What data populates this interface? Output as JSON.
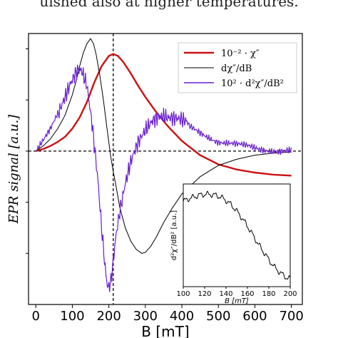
{
  "caption_fragment": "uished also at higher temperatures.",
  "chart_data": [
    {
      "type": "line",
      "title": "",
      "xlabel": "B [mT]",
      "ylabel": "EPR signal [a.u.]",
      "xlim": [
        -20,
        730
      ],
      "ylim": [
        -1.5,
        1.15
      ],
      "xticks": [
        "0",
        "100",
        "200",
        "300",
        "400",
        "500",
        "600",
        "700"
      ],
      "xtick_values": [
        0,
        100,
        200,
        300,
        400,
        500,
        600,
        700
      ],
      "yticks_labeled": false,
      "reference_lines": {
        "vertical_x": 212,
        "horizontal_y": 0,
        "style": "dashed"
      },
      "legend_position": "top-right",
      "series": [
        {
          "name": "10⁻² · χ″",
          "color": "#cc1111",
          "x": [
            0,
            20,
            40,
            60,
            80,
            100,
            120,
            140,
            160,
            180,
            200,
            212,
            225,
            240,
            260,
            280,
            300,
            330,
            360,
            400,
            450,
            500,
            550,
            600,
            650,
            700
          ],
          "y": [
            0.0,
            0.02,
            0.05,
            0.09,
            0.14,
            0.22,
            0.33,
            0.48,
            0.67,
            0.83,
            0.93,
            0.95,
            0.93,
            0.87,
            0.76,
            0.64,
            0.53,
            0.38,
            0.25,
            0.1,
            -0.04,
            -0.13,
            -0.18,
            -0.21,
            -0.23,
            -0.24
          ]
        },
        {
          "name": "dχ″/dB",
          "color": "#000000",
          "x": [
            0,
            20,
            40,
            60,
            80,
            100,
            110,
            120,
            130,
            140,
            150,
            158,
            165,
            175,
            185,
            195,
            205,
            212,
            220,
            230,
            245,
            260,
            275,
            290,
            300,
            315,
            330,
            350,
            375,
            400,
            450,
            500,
            550,
            600,
            650,
            700
          ],
          "y": [
            0.0,
            0.05,
            0.12,
            0.22,
            0.35,
            0.55,
            0.68,
            0.83,
            0.96,
            1.05,
            1.1,
            1.05,
            0.95,
            0.75,
            0.5,
            0.22,
            -0.05,
            -0.2,
            -0.35,
            -0.55,
            -0.75,
            -0.88,
            -0.96,
            -1.0,
            -0.99,
            -0.93,
            -0.84,
            -0.7,
            -0.55,
            -0.42,
            -0.25,
            -0.14,
            -0.08,
            -0.04,
            -0.02,
            -0.01
          ]
        },
        {
          "name": "10² · d²χ″/dB²",
          "color": "#6a1ecf",
          "x": [
            0,
            20,
            40,
            60,
            80,
            100,
            115,
            125,
            140,
            155,
            170,
            180,
            190,
            197,
            205,
            212,
            220,
            230,
            245,
            260,
            280,
            300,
            320,
            335,
            350,
            380,
            420,
            460,
            500,
            550,
            600,
            650,
            700
          ],
          "y": [
            0.0,
            0.12,
            0.24,
            0.38,
            0.52,
            0.66,
            0.75,
            0.75,
            0.62,
            0.25,
            -0.25,
            -0.7,
            -1.1,
            -1.3,
            -1.25,
            -1.05,
            -0.8,
            -0.6,
            -0.35,
            -0.15,
            0.05,
            0.2,
            0.33,
            0.38,
            0.38,
            0.32,
            0.23,
            0.16,
            0.1,
            0.06,
            0.03,
            0.01,
            0.0
          ]
        }
      ]
    },
    {
      "type": "line",
      "title": "",
      "xlabel": "B [mT]",
      "ylabel": "d²χ″/dB² [a.u.]",
      "xlim": [
        100,
        200
      ],
      "xticks": [
        "100",
        "120",
        "140",
        "160",
        "180",
        "200"
      ],
      "xtick_values": [
        100,
        120,
        140,
        160,
        180,
        200
      ],
      "series": [
        {
          "color": "#000000",
          "x": [
            100,
            105,
            110,
            115,
            120,
            125,
            130,
            135,
            140,
            145,
            150,
            155,
            160,
            165,
            170,
            175,
            180,
            185,
            190,
            195,
            200
          ],
          "y": [
            0.9,
            0.93,
            0.95,
            0.97,
            0.98,
            0.98,
            0.97,
            0.95,
            0.91,
            0.86,
            0.79,
            0.71,
            0.62,
            0.52,
            0.42,
            0.33,
            0.24,
            0.16,
            0.1,
            0.05,
            0.02
          ]
        }
      ]
    }
  ]
}
